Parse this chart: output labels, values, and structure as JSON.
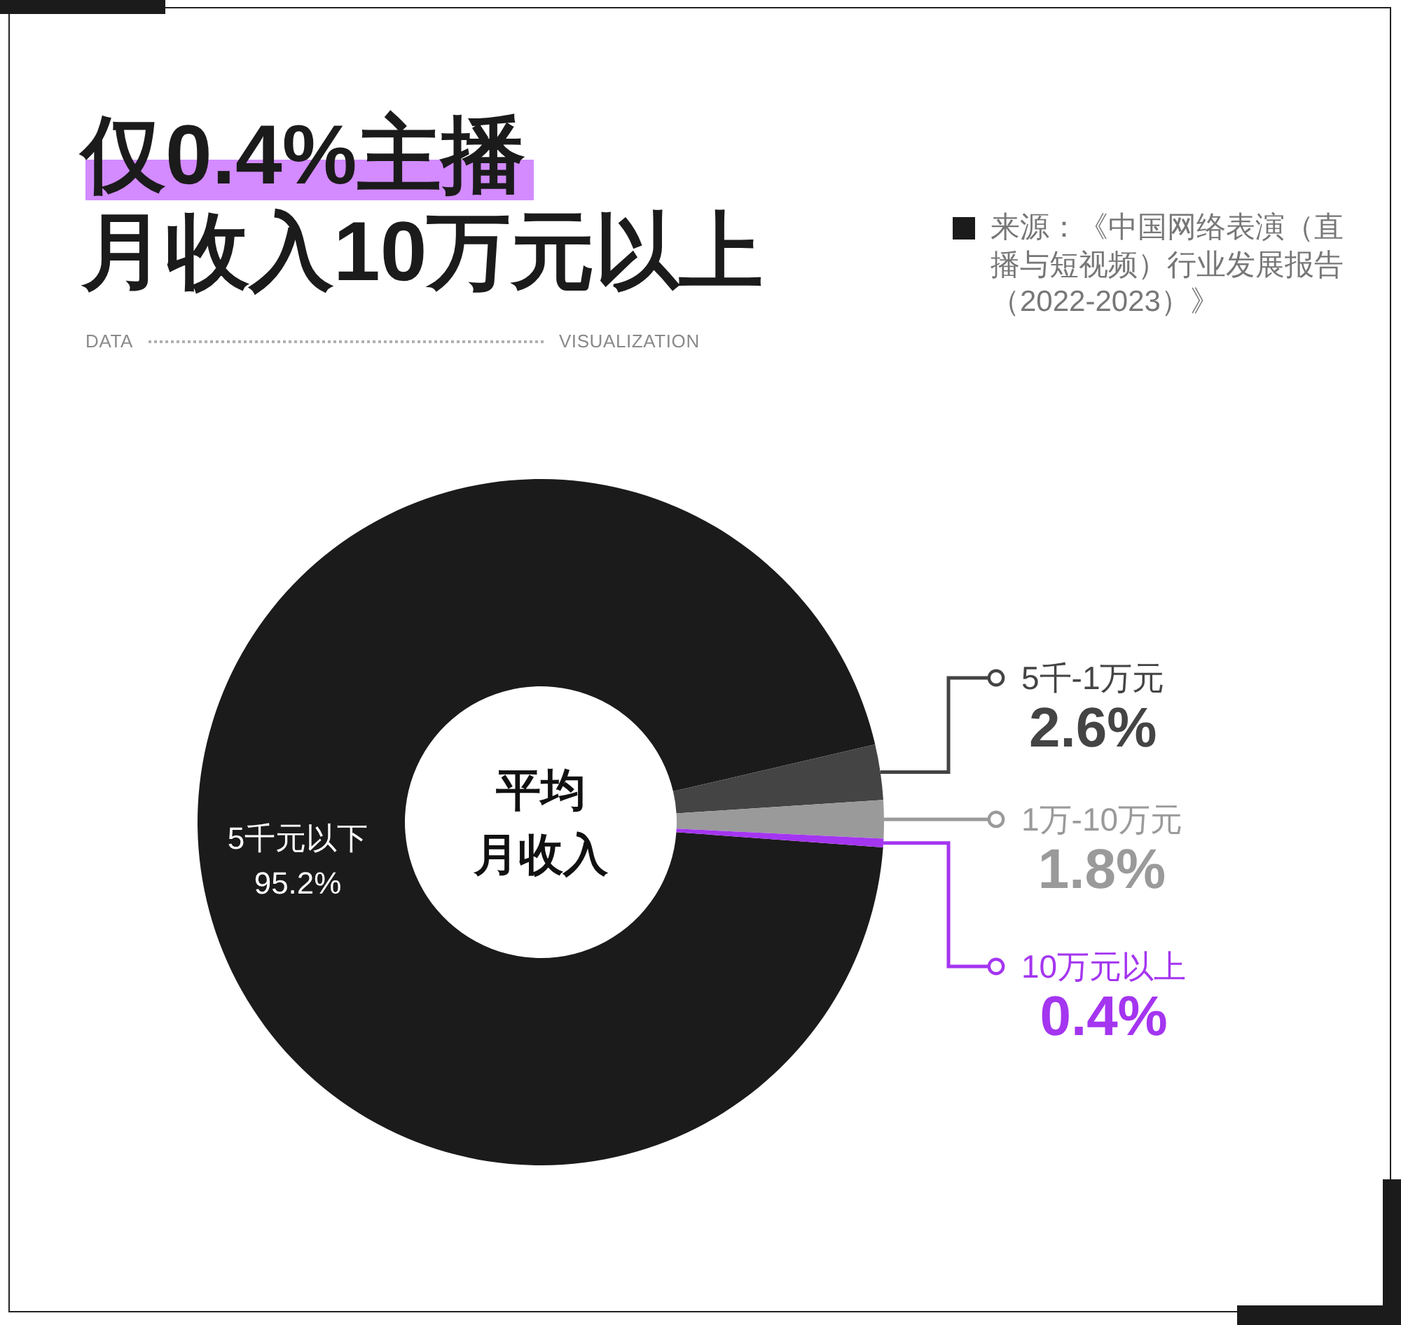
{
  "chart_data": {
    "type": "donut",
    "title": "仅0.4%主播月收入10万元以上",
    "categories": [
      "5千元以下",
      "5千-1万元",
      "1万-10万元",
      "10万元以上"
    ],
    "values": [
      95.2,
      2.6,
      1.8,
      0.4
    ],
    "colors": [
      "#1b1b1b",
      "#444444",
      "#9a9a9a",
      "#a435f0"
    ],
    "value_labels": [
      "95.2%",
      "2.6%",
      "1.8%",
      "0.4%"
    ],
    "legend": "right",
    "annotations": [
      "平均月收入",
      "来源：《中国网络表演（直播与短视频）行业发展报告（2022-2023）》",
      "DATA",
      "VISUALIZATION"
    ]
  }
}
